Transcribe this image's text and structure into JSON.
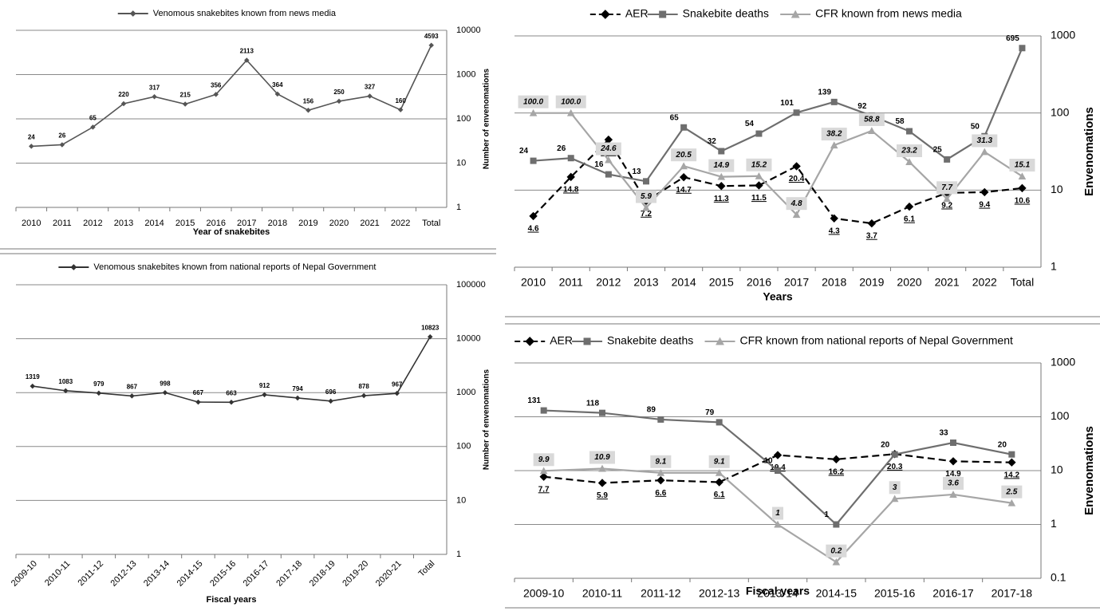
{
  "chart_data": [
    {
      "type": "line",
      "log_scale": true,
      "y_axis_side": "right",
      "grid": true,
      "legend": "top",
      "x_label": "Year of snakebites",
      "y_label": "Number of envenomations",
      "categories": [
        "2010",
        "2011",
        "2012",
        "2013",
        "2014",
        "2015",
        "2016",
        "2017",
        "2018",
        "2019",
        "2020",
        "2021",
        "2022",
        "Total"
      ],
      "series": [
        {
          "name": "Venomous snakebites known from news media",
          "color": "#555555",
          "marker": "diamond",
          "line_style": "solid",
          "values": [
            24,
            26,
            65,
            220,
            317,
            215,
            356,
            2113,
            364,
            156,
            250,
            327,
            160,
            4593
          ]
        }
      ],
      "ylim": [
        1,
        10000
      ],
      "yticks": [
        1,
        10,
        100,
        1000,
        10000
      ]
    },
    {
      "type": "line",
      "log_scale": true,
      "y_axis_side": "right",
      "grid": true,
      "legend": "top",
      "x_label": "Fiscal years",
      "y_label": "Number of envenomations",
      "categories": [
        "2009-10",
        "2010-11",
        "2011-12",
        "2012-13",
        "2013-14",
        "2014-15",
        "2015-16",
        "2016-17",
        "2017-18",
        "2018-19",
        "2019-20",
        "2020-21",
        "Total"
      ],
      "series": [
        {
          "name": "Venomous snakebites known from national reports of Nepal Government",
          "color": "#333333",
          "marker": "diamond",
          "line_style": "solid",
          "values": [
            1319,
            1083,
            979,
            867,
            998,
            667,
            663,
            912,
            794,
            696,
            878,
            967,
            10823
          ]
        }
      ],
      "ylim": [
        1,
        100000
      ],
      "yticks": [
        1,
        10,
        100,
        1000,
        10000,
        100000
      ]
    },
    {
      "type": "line",
      "log_scale": true,
      "y_axis_side": "right",
      "grid": true,
      "legend": "top",
      "x_label": "Years",
      "y_label": "Envenomations",
      "categories": [
        "2010",
        "2011",
        "2012",
        "2013",
        "2014",
        "2015",
        "2016",
        "2017",
        "2018",
        "2019",
        "2020",
        "2021",
        "2022",
        "Total"
      ],
      "series": [
        {
          "name": "AER",
          "color": "#000000",
          "marker": "diamond",
          "line_style": "dashed",
          "values": [
            4.6,
            14.8,
            45.1,
            7.2,
            14.7,
            11.3,
            11.5,
            20.4,
            4.3,
            3.7,
            6.1,
            9.2,
            9.4,
            10.6
          ]
        },
        {
          "name": "Snakebite deaths",
          "color": "#6e6e6e",
          "marker": "square",
          "line_style": "solid",
          "values": [
            24,
            26,
            16,
            13,
            65,
            32,
            54,
            101,
            139,
            92,
            58,
            25,
            50,
            695
          ]
        },
        {
          "name": "CFR known from news media",
          "color": "#a6a6a6",
          "marker": "triangle",
          "line_style": "solid",
          "values": [
            100,
            100,
            24.6,
            5.9,
            20.5,
            14.9,
            15.2,
            4.8,
            38.2,
            58.8,
            23.2,
            7.7,
            31.3,
            15.1
          ],
          "value_labels": [
            "100.0",
            "100.0",
            "24.6",
            "5.9",
            "20.5",
            "14.9",
            "15.2",
            "4.8",
            "38.2",
            "58.8",
            "23.2",
            "7.7",
            "31.3",
            "15.1"
          ]
        }
      ],
      "ylim": [
        1,
        1000
      ],
      "yticks": [
        1,
        10,
        100,
        1000
      ]
    },
    {
      "type": "line",
      "log_scale": true,
      "y_axis_side": "right",
      "grid": true,
      "legend": "top",
      "x_label": "Fiscal years",
      "y_label": "Envenomations",
      "categories": [
        "2009-10",
        "2010-11",
        "2011-12",
        "2012-13",
        "2013-14",
        "2014-15",
        "2015-16",
        "2016-17",
        "2017-18"
      ],
      "series": [
        {
          "name": "AER",
          "color": "#000000",
          "marker": "diamond",
          "line_style": "dashed",
          "values": [
            7.7,
            5.9,
            6.6,
            6.1,
            19.4,
            16.2,
            20.3,
            14.9,
            14.2
          ]
        },
        {
          "name": "Snakebite deaths",
          "color": "#6e6e6e",
          "marker": "square",
          "line_style": "solid",
          "values": [
            131,
            118,
            89,
            79,
            10,
            1,
            20,
            33,
            20
          ]
        },
        {
          "name": "CFR known from national reports of Nepal Government",
          "color": "#a6a6a6",
          "marker": "triangle",
          "line_style": "solid",
          "values": [
            9.9,
            10.9,
            9.1,
            9.1,
            1,
            0.2,
            3,
            3.6,
            2.5
          ]
        }
      ],
      "ylim": [
        0.1,
        1000
      ],
      "yticks": [
        0.1,
        1,
        10,
        100,
        1000
      ]
    }
  ]
}
